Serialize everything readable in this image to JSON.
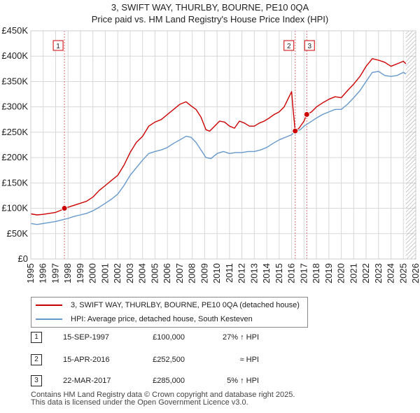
{
  "title_line1": "3, SWIFT WAY, THURLBY, BOURNE, PE10 0QA",
  "title_line2": "Price paid vs. HM Land Registry's House Price Index (HPI)",
  "chart_data": {
    "type": "line",
    "title": "3, SWIFT WAY, THURLBY, BOURNE, PE10 0QA — Price paid vs. HM Land Registry's House Price Index (HPI)",
    "xlabel": "",
    "ylabel": "",
    "xlim": [
      1995,
      2026
    ],
    "ylim": [
      0,
      450000
    ],
    "x_ticks": [
      1995,
      1996,
      1997,
      1998,
      1999,
      2000,
      2001,
      2002,
      2003,
      2004,
      2005,
      2006,
      2007,
      2008,
      2009,
      2010,
      2011,
      2012,
      2013,
      2014,
      2015,
      2016,
      2017,
      2018,
      2019,
      2020,
      2021,
      2022,
      2023,
      2024,
      2025,
      2026
    ],
    "y_ticks": [
      {
        "value": 0,
        "label": "£0"
      },
      {
        "value": 50000,
        "label": "£50K"
      },
      {
        "value": 100000,
        "label": "£100K"
      },
      {
        "value": 150000,
        "label": "£150K"
      },
      {
        "value": 200000,
        "label": "£200K"
      },
      {
        "value": 250000,
        "label": "£250K"
      },
      {
        "value": 300000,
        "label": "£300K"
      },
      {
        "value": 350000,
        "label": "£350K"
      },
      {
        "value": 400000,
        "label": "£400K"
      },
      {
        "value": 450000,
        "label": "£450K"
      }
    ],
    "grid": true,
    "legend_position": "below",
    "hatched_region_from": 2025.2,
    "series": [
      {
        "name": "3, SWIFT WAY, THURLBY, BOURNE, PE10 0QA (detached house)",
        "color": "#cc0000",
        "points": [
          [
            1995.0,
            89000
          ],
          [
            1995.5,
            87000
          ],
          [
            1996.0,
            88000
          ],
          [
            1996.5,
            90000
          ],
          [
            1997.0,
            92000
          ],
          [
            1997.4,
            96000
          ],
          [
            1997.71,
            100000
          ],
          [
            1998.0,
            102000
          ],
          [
            1998.5,
            106000
          ],
          [
            1999.0,
            110000
          ],
          [
            1999.5,
            114000
          ],
          [
            2000.0,
            122000
          ],
          [
            2000.5,
            135000
          ],
          [
            2001.0,
            145000
          ],
          [
            2001.5,
            155000
          ],
          [
            2002.0,
            165000
          ],
          [
            2002.5,
            185000
          ],
          [
            2003.0,
            210000
          ],
          [
            2003.5,
            230000
          ],
          [
            2004.0,
            242000
          ],
          [
            2004.5,
            262000
          ],
          [
            2005.0,
            270000
          ],
          [
            2005.5,
            275000
          ],
          [
            2006.0,
            285000
          ],
          [
            2006.5,
            295000
          ],
          [
            2007.0,
            305000
          ],
          [
            2007.5,
            310000
          ],
          [
            2007.9,
            302000
          ],
          [
            2008.3,
            295000
          ],
          [
            2008.7,
            280000
          ],
          [
            2009.1,
            255000
          ],
          [
            2009.4,
            252000
          ],
          [
            2009.8,
            262000
          ],
          [
            2010.2,
            272000
          ],
          [
            2010.6,
            270000
          ],
          [
            2011.0,
            262000
          ],
          [
            2011.4,
            258000
          ],
          [
            2011.8,
            272000
          ],
          [
            2012.2,
            268000
          ],
          [
            2012.6,
            262000
          ],
          [
            2013.0,
            262000
          ],
          [
            2013.4,
            268000
          ],
          [
            2013.8,
            272000
          ],
          [
            2014.2,
            278000
          ],
          [
            2014.6,
            285000
          ],
          [
            2015.0,
            290000
          ],
          [
            2015.4,
            300000
          ],
          [
            2015.8,
            320000
          ],
          [
            2016.0,
            330000
          ],
          [
            2016.1,
            300000
          ],
          [
            2016.29,
            252500
          ],
          [
            2016.6,
            258000
          ],
          [
            2016.8,
            265000
          ],
          [
            2017.0,
            272000
          ],
          [
            2017.22,
            285000
          ],
          [
            2017.6,
            290000
          ],
          [
            2018.0,
            300000
          ],
          [
            2018.5,
            308000
          ],
          [
            2019.0,
            315000
          ],
          [
            2019.5,
            320000
          ],
          [
            2020.0,
            318000
          ],
          [
            2020.5,
            332000
          ],
          [
            2021.0,
            345000
          ],
          [
            2021.5,
            360000
          ],
          [
            2022.0,
            380000
          ],
          [
            2022.5,
            395000
          ],
          [
            2023.0,
            392000
          ],
          [
            2023.5,
            388000
          ],
          [
            2024.0,
            380000
          ],
          [
            2024.5,
            385000
          ],
          [
            2025.0,
            390000
          ],
          [
            2025.2,
            385000
          ]
        ]
      },
      {
        "name": "HPI: Average price, detached house, South Kesteven",
        "color": "#6699cc",
        "points": [
          [
            1995.0,
            70000
          ],
          [
            1995.5,
            68000
          ],
          [
            1996.0,
            70000
          ],
          [
            1996.5,
            72000
          ],
          [
            1997.0,
            74000
          ],
          [
            1997.5,
            77000
          ],
          [
            1998.0,
            80000
          ],
          [
            1998.5,
            84000
          ],
          [
            1999.0,
            87000
          ],
          [
            1999.5,
            90000
          ],
          [
            2000.0,
            95000
          ],
          [
            2000.5,
            102000
          ],
          [
            2001.0,
            110000
          ],
          [
            2001.5,
            118000
          ],
          [
            2002.0,
            128000
          ],
          [
            2002.5,
            145000
          ],
          [
            2003.0,
            165000
          ],
          [
            2003.5,
            180000
          ],
          [
            2004.0,
            195000
          ],
          [
            2004.5,
            208000
          ],
          [
            2005.0,
            212000
          ],
          [
            2005.5,
            215000
          ],
          [
            2006.0,
            220000
          ],
          [
            2006.5,
            228000
          ],
          [
            2007.0,
            235000
          ],
          [
            2007.5,
            242000
          ],
          [
            2007.9,
            240000
          ],
          [
            2008.3,
            230000
          ],
          [
            2008.7,
            215000
          ],
          [
            2009.1,
            200000
          ],
          [
            2009.5,
            198000
          ],
          [
            2010.0,
            208000
          ],
          [
            2010.5,
            212000
          ],
          [
            2011.0,
            208000
          ],
          [
            2011.5,
            210000
          ],
          [
            2012.0,
            210000
          ],
          [
            2012.5,
            212000
          ],
          [
            2013.0,
            212000
          ],
          [
            2013.5,
            215000
          ],
          [
            2014.0,
            220000
          ],
          [
            2014.5,
            228000
          ],
          [
            2015.0,
            235000
          ],
          [
            2015.5,
            240000
          ],
          [
            2016.0,
            245000
          ],
          [
            2016.29,
            252000
          ],
          [
            2016.7,
            255000
          ],
          [
            2017.0,
            262000
          ],
          [
            2017.5,
            270000
          ],
          [
            2018.0,
            278000
          ],
          [
            2018.5,
            285000
          ],
          [
            2019.0,
            290000
          ],
          [
            2019.5,
            295000
          ],
          [
            2020.0,
            295000
          ],
          [
            2020.5,
            305000
          ],
          [
            2021.0,
            318000
          ],
          [
            2021.5,
            332000
          ],
          [
            2022.0,
            350000
          ],
          [
            2022.5,
            368000
          ],
          [
            2023.0,
            370000
          ],
          [
            2023.5,
            362000
          ],
          [
            2024.0,
            360000
          ],
          [
            2024.5,
            362000
          ],
          [
            2025.0,
            368000
          ],
          [
            2025.2,
            365000
          ]
        ]
      }
    ],
    "sales": [
      {
        "label": "1",
        "x": 1997.71,
        "value": 100000
      },
      {
        "label": "2",
        "x": 2016.29,
        "value": 252500
      },
      {
        "label": "3",
        "x": 2017.22,
        "value": 285000
      }
    ]
  },
  "legend": {
    "property_label": "3, SWIFT WAY, THURLBY, BOURNE, PE10 0QA (detached house)",
    "hpi_label": "HPI: Average price, detached house, South Kesteven"
  },
  "transactions": [
    {
      "num": "1",
      "date": "15-SEP-1997",
      "price": "£100,000",
      "hpi": "27% ↑ HPI"
    },
    {
      "num": "2",
      "date": "15-APR-2016",
      "price": "£252,500",
      "hpi": "≈ HPI"
    },
    {
      "num": "3",
      "date": "22-MAR-2017",
      "price": "£285,000",
      "hpi": "5% ↑ HPI"
    }
  ],
  "footer": {
    "line1": "Contains HM Land Registry data © Crown copyright and database right 2025.",
    "line2": "This data is licensed under the Open Government Licence v3.0."
  }
}
